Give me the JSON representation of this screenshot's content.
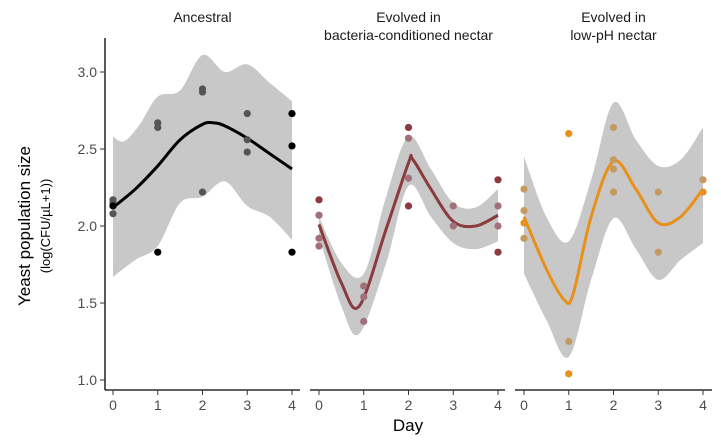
{
  "chart_data": {
    "type": "scatter",
    "xlabel": "Day",
    "ylabel": "Yeast population size",
    "ylabel_sub": "(log(CFU/µL+1))",
    "xlim": [
      0,
      4
    ],
    "ylim": [
      1.0,
      3.0
    ],
    "xticks": [
      "0",
      "1",
      "2",
      "3",
      "4"
    ],
    "yticks": [
      "1.0",
      "1.5",
      "2.0",
      "2.5",
      "3.0"
    ],
    "grid": false,
    "panels": [
      {
        "title": [
          "Ancestral"
        ],
        "color": "#000000",
        "muted": "#555555",
        "points": [
          [
            0,
            2.17,
            1
          ],
          [
            0,
            2.15,
            1
          ],
          [
            0,
            2.13,
            0
          ],
          [
            0,
            2.08,
            1
          ],
          [
            1,
            2.67,
            1
          ],
          [
            1,
            2.64,
            1
          ],
          [
            1,
            1.83,
            0
          ],
          [
            2,
            2.89,
            1
          ],
          [
            2,
            2.87,
            1
          ],
          [
            2,
            2.22,
            1
          ],
          [
            3,
            2.73,
            1
          ],
          [
            3,
            2.56,
            1
          ],
          [
            3,
            2.48,
            1
          ],
          [
            4,
            2.73,
            0
          ],
          [
            4,
            2.52,
            0
          ],
          [
            4,
            1.83,
            0
          ]
        ],
        "fit": [
          [
            0,
            2.12
          ],
          [
            0.5,
            2.24
          ],
          [
            1,
            2.39
          ],
          [
            1.5,
            2.56
          ],
          [
            2,
            2.66
          ],
          [
            2.25,
            2.67
          ],
          [
            2.5,
            2.65
          ],
          [
            3,
            2.57
          ],
          [
            3.5,
            2.47
          ],
          [
            4,
            2.37
          ]
        ],
        "upper": [
          [
            0,
            2.58
          ],
          [
            0.25,
            2.55
          ],
          [
            0.6,
            2.66
          ],
          [
            1,
            2.84
          ],
          [
            1.5,
            2.88
          ],
          [
            2,
            3.11
          ],
          [
            2.5,
            3.0
          ],
          [
            3,
            3.05
          ],
          [
            3.5,
            2.93
          ],
          [
            4,
            2.81
          ]
        ],
        "lower": [
          [
            0,
            1.67
          ],
          [
            0.5,
            1.78
          ],
          [
            1,
            1.87
          ],
          [
            1.5,
            2.15
          ],
          [
            2,
            2.19
          ],
          [
            2.5,
            2.29
          ],
          [
            3,
            2.13
          ],
          [
            3.5,
            2.06
          ],
          [
            4,
            1.91
          ]
        ]
      },
      {
        "title": [
          "Evolved in",
          "bacteria-conditioned nectar"
        ],
        "color": "#8b3a3e",
        "muted": "#a2707a",
        "points": [
          [
            0,
            2.17,
            0
          ],
          [
            0,
            2.07,
            1
          ],
          [
            0,
            1.92,
            1
          ],
          [
            0,
            1.87,
            1
          ],
          [
            1,
            1.61,
            1
          ],
          [
            1,
            1.54,
            1
          ],
          [
            1,
            1.38,
            1
          ],
          [
            2,
            2.64,
            0
          ],
          [
            2,
            2.57,
            1
          ],
          [
            2,
            2.31,
            1
          ],
          [
            2,
            2.13,
            0
          ],
          [
            3,
            2.13,
            1
          ],
          [
            3,
            2.0,
            1
          ],
          [
            4,
            2.3,
            0
          ],
          [
            4,
            2.13,
            1
          ],
          [
            4,
            2.0,
            1
          ],
          [
            4,
            1.83,
            0
          ]
        ],
        "fit": [
          [
            0,
            2.01
          ],
          [
            0.5,
            1.63
          ],
          [
            0.9,
            1.48
          ],
          [
            1.5,
            1.98
          ],
          [
            2,
            2.41
          ],
          [
            2.1,
            2.43
          ],
          [
            2.5,
            2.24
          ],
          [
            3,
            2.03
          ],
          [
            3.5,
            2.0
          ],
          [
            4,
            2.07
          ]
        ],
        "upper": [
          [
            0,
            2.06
          ],
          [
            0.5,
            1.76
          ],
          [
            1,
            1.69
          ],
          [
            1.5,
            2.19
          ],
          [
            2,
            2.58
          ],
          [
            2.5,
            2.37
          ],
          [
            3,
            2.15
          ],
          [
            3.5,
            2.12
          ],
          [
            4,
            2.24
          ]
        ],
        "lower": [
          [
            0,
            1.93
          ],
          [
            0.5,
            1.48
          ],
          [
            0.9,
            1.3
          ],
          [
            1.5,
            1.76
          ],
          [
            2,
            2.26
          ],
          [
            2.5,
            2.06
          ],
          [
            3,
            1.89
          ],
          [
            3.5,
            1.85
          ],
          [
            4,
            1.9
          ]
        ]
      },
      {
        "title": [
          "Evolved in",
          "low-pH nectar"
        ],
        "color": "#e8901a",
        "muted": "#c49a60",
        "points": [
          [
            0,
            2.24,
            1
          ],
          [
            0,
            2.1,
            1
          ],
          [
            0,
            2.02,
            0
          ],
          [
            0,
            1.92,
            1
          ],
          [
            1,
            2.6,
            0
          ],
          [
            1,
            1.25,
            1
          ],
          [
            1,
            1.04,
            0
          ],
          [
            2,
            2.64,
            1
          ],
          [
            2,
            2.43,
            1
          ],
          [
            2,
            2.37,
            1
          ],
          [
            2,
            2.22,
            1
          ],
          [
            3,
            2.22,
            1
          ],
          [
            3,
            1.83,
            1
          ],
          [
            4,
            2.3,
            1
          ],
          [
            4,
            2.22,
            0
          ]
        ],
        "fit": [
          [
            0,
            2.06
          ],
          [
            0.5,
            1.72
          ],
          [
            0.9,
            1.52
          ],
          [
            1.1,
            1.56
          ],
          [
            1.5,
            2.06
          ],
          [
            2,
            2.42
          ],
          [
            2.5,
            2.24
          ],
          [
            3,
            2.02
          ],
          [
            3.5,
            2.06
          ],
          [
            4,
            2.24
          ]
        ],
        "upper": [
          [
            0,
            2.45
          ],
          [
            0.5,
            2.06
          ],
          [
            1,
            1.9
          ],
          [
            1.5,
            2.3
          ],
          [
            2,
            2.8
          ],
          [
            2.5,
            2.56
          ],
          [
            3,
            2.39
          ],
          [
            3.5,
            2.43
          ],
          [
            4,
            2.64
          ]
        ],
        "lower": [
          [
            0,
            1.69
          ],
          [
            0.5,
            1.39
          ],
          [
            1,
            1.15
          ],
          [
            1.5,
            1.65
          ],
          [
            2,
            2.05
          ],
          [
            2.5,
            1.85
          ],
          [
            3,
            1.65
          ],
          [
            3.5,
            1.78
          ],
          [
            4,
            1.89
          ]
        ]
      }
    ]
  }
}
